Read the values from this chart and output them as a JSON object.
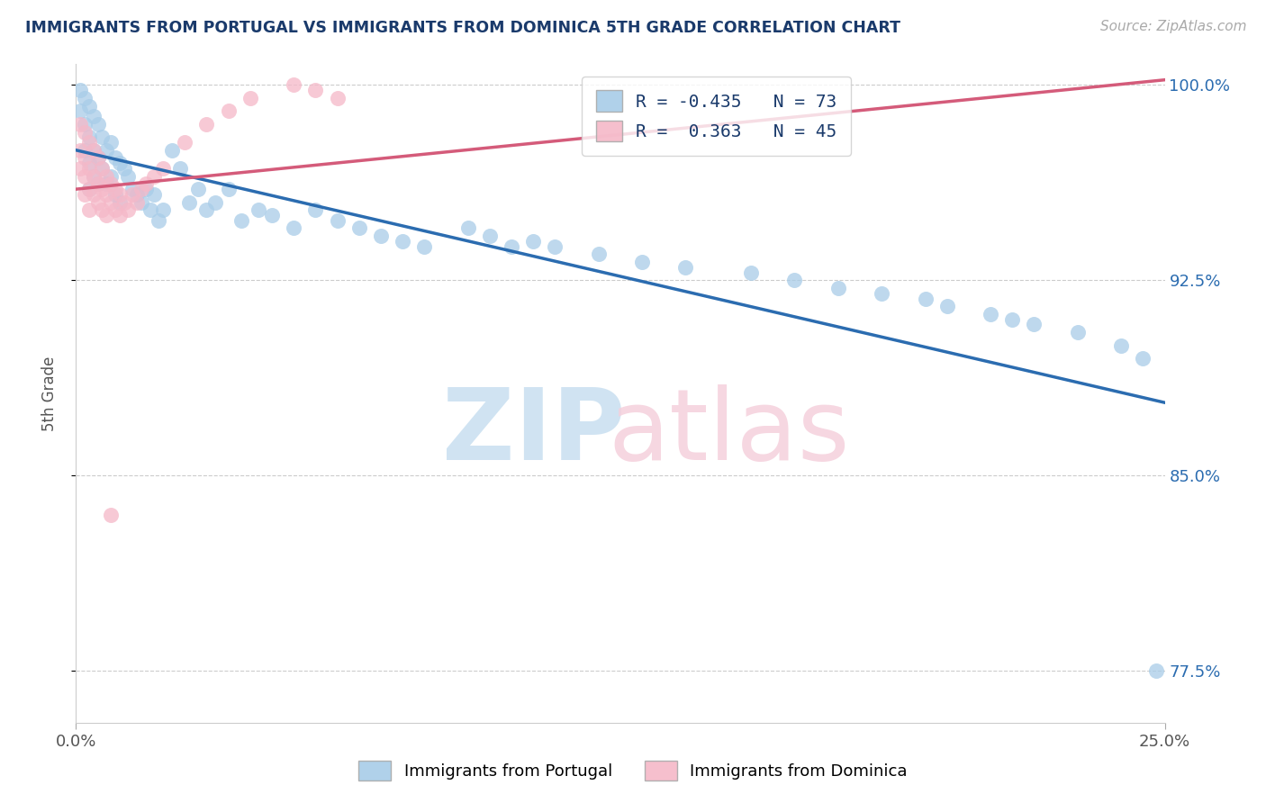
{
  "title": "IMMIGRANTS FROM PORTUGAL VS IMMIGRANTS FROM DOMINICA 5TH GRADE CORRELATION CHART",
  "source": "Source: ZipAtlas.com",
  "ylabel": "5th Grade",
  "xlim": [
    0.0,
    0.25
  ],
  "ylim": [
    0.755,
    1.008
  ],
  "yticks": [
    0.775,
    0.85,
    0.925,
    1.0
  ],
  "ytick_labels": [
    "77.5%",
    "85.0%",
    "92.5%",
    "100.0%"
  ],
  "xticks": [
    0.0,
    0.25
  ],
  "xtick_labels": [
    "0.0%",
    "25.0%"
  ],
  "blue_R": -0.435,
  "blue_N": 73,
  "pink_R": 0.363,
  "pink_N": 45,
  "blue_color": "#a8cce8",
  "pink_color": "#f5b8c8",
  "blue_line_color": "#2b6cb0",
  "pink_line_color": "#d45b7a",
  "legend_blue_label": "Immigrants from Portugal",
  "legend_pink_label": "Immigrants from Dominica",
  "blue_line_x0": 0.0,
  "blue_line_y0": 0.975,
  "blue_line_x1": 0.25,
  "blue_line_y1": 0.878,
  "pink_line_x0": 0.0,
  "pink_line_y0": 0.96,
  "pink_line_x1": 0.25,
  "pink_line_y1": 1.002,
  "blue_scatter_x": [
    0.001,
    0.001,
    0.002,
    0.002,
    0.002,
    0.003,
    0.003,
    0.003,
    0.003,
    0.004,
    0.004,
    0.004,
    0.005,
    0.005,
    0.005,
    0.006,
    0.006,
    0.007,
    0.007,
    0.008,
    0.008,
    0.009,
    0.009,
    0.01,
    0.01,
    0.011,
    0.012,
    0.013,
    0.014,
    0.015,
    0.016,
    0.017,
    0.018,
    0.019,
    0.02,
    0.022,
    0.024,
    0.026,
    0.028,
    0.03,
    0.032,
    0.035,
    0.038,
    0.042,
    0.045,
    0.05,
    0.055,
    0.06,
    0.065,
    0.07,
    0.075,
    0.08,
    0.09,
    0.095,
    0.1,
    0.105,
    0.11,
    0.12,
    0.13,
    0.14,
    0.155,
    0.165,
    0.175,
    0.185,
    0.195,
    0.2,
    0.21,
    0.215,
    0.22,
    0.23,
    0.24,
    0.245,
    0.248
  ],
  "blue_scatter_y": [
    0.998,
    0.99,
    0.995,
    0.985,
    0.975,
    0.992,
    0.98,
    0.97,
    0.96,
    0.988,
    0.975,
    0.965,
    0.985,
    0.972,
    0.962,
    0.98,
    0.968,
    0.975,
    0.962,
    0.978,
    0.965,
    0.972,
    0.958,
    0.97,
    0.955,
    0.968,
    0.965,
    0.96,
    0.958,
    0.955,
    0.96,
    0.952,
    0.958,
    0.948,
    0.952,
    0.975,
    0.968,
    0.955,
    0.96,
    0.952,
    0.955,
    0.96,
    0.948,
    0.952,
    0.95,
    0.945,
    0.952,
    0.948,
    0.945,
    0.942,
    0.94,
    0.938,
    0.945,
    0.942,
    0.938,
    0.94,
    0.938,
    0.935,
    0.932,
    0.93,
    0.928,
    0.925,
    0.922,
    0.92,
    0.918,
    0.915,
    0.912,
    0.91,
    0.908,
    0.905,
    0.9,
    0.895,
    0.775
  ],
  "pink_scatter_x": [
    0.001,
    0.001,
    0.001,
    0.002,
    0.002,
    0.002,
    0.002,
    0.003,
    0.003,
    0.003,
    0.003,
    0.004,
    0.004,
    0.004,
    0.005,
    0.005,
    0.005,
    0.006,
    0.006,
    0.006,
    0.007,
    0.007,
    0.007,
    0.008,
    0.008,
    0.009,
    0.009,
    0.01,
    0.01,
    0.011,
    0.012,
    0.013,
    0.014,
    0.015,
    0.016,
    0.018,
    0.02,
    0.025,
    0.03,
    0.035,
    0.04,
    0.05,
    0.055,
    0.06,
    0.008
  ],
  "pink_scatter_y": [
    0.985,
    0.975,
    0.968,
    0.982,
    0.972,
    0.965,
    0.958,
    0.978,
    0.968,
    0.96,
    0.952,
    0.975,
    0.965,
    0.958,
    0.972,
    0.962,
    0.955,
    0.968,
    0.96,
    0.952,
    0.965,
    0.958,
    0.95,
    0.962,
    0.955,
    0.96,
    0.952,
    0.958,
    0.95,
    0.955,
    0.952,
    0.958,
    0.955,
    0.96,
    0.962,
    0.965,
    0.968,
    0.978,
    0.985,
    0.99,
    0.995,
    1.0,
    0.998,
    0.995,
    0.835
  ]
}
